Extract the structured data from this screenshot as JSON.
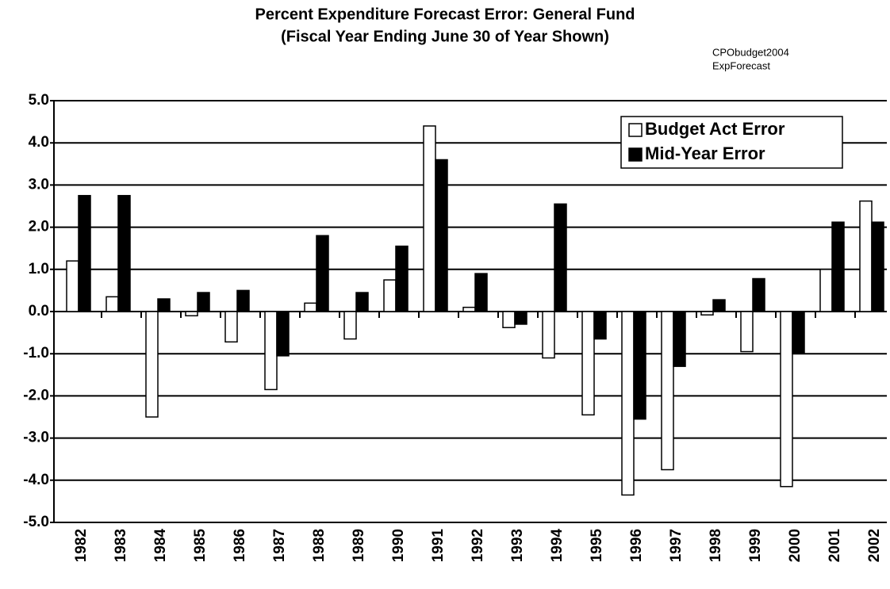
{
  "chart_data": {
    "type": "bar",
    "title": "Percent Expenditure Forecast Error: General Fund",
    "subtitle": "(Fiscal Year Ending June 30 of Year Shown)",
    "annotations": [
      "CPObudget2004",
      "ExpForecast"
    ],
    "categories": [
      "1982",
      "1983",
      "1984",
      "1985",
      "1986",
      "1987",
      "1988",
      "1989",
      "1990",
      "1991",
      "1992",
      "1993",
      "1994",
      "1995",
      "1996",
      "1997",
      "1998",
      "1999",
      "2000",
      "2001",
      "2002"
    ],
    "series": [
      {
        "name": "Budget Act Error",
        "color": "#ffffff",
        "values": [
          1.2,
          0.35,
          -2.5,
          -0.1,
          -0.72,
          -1.85,
          0.2,
          -0.65,
          0.75,
          4.4,
          0.1,
          -0.38,
          -1.1,
          -2.45,
          -4.35,
          -3.75,
          -0.08,
          -0.95,
          -4.15,
          1.0,
          2.62
        ]
      },
      {
        "name": "Mid-Year Error",
        "color": "#000000",
        "values": [
          2.75,
          2.75,
          0.3,
          0.45,
          0.5,
          -1.05,
          1.8,
          0.45,
          1.55,
          3.6,
          0.9,
          -0.3,
          2.55,
          -0.65,
          -2.55,
          -1.3,
          0.28,
          0.78,
          -1.0,
          2.12,
          2.12
        ]
      }
    ],
    "ylim": [
      -5,
      5
    ],
    "yticks": [
      {
        "value": 5,
        "label": "5.0"
      },
      {
        "value": 4,
        "label": "4.0"
      },
      {
        "value": 3,
        "label": "3.0"
      },
      {
        "value": 2,
        "label": "2.0"
      },
      {
        "value": 1,
        "label": "1.0"
      },
      {
        "value": 0,
        "label": "0.0"
      },
      {
        "value": -1,
        "label": "-1.0"
      },
      {
        "value": -2,
        "label": "-2.0"
      },
      {
        "value": -3,
        "label": "-3.0"
      },
      {
        "value": -4,
        "label": "-4.0"
      },
      {
        "value": -5,
        "label": "-5.0"
      }
    ],
    "grid": true,
    "legend": "top-right"
  }
}
